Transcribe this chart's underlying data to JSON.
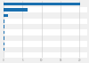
{
  "values": [
    20175000,
    6250000,
    1100000,
    300000,
    250000,
    200000,
    175000,
    150000,
    125000,
    100000
  ],
  "bar_color": "#1a6faf",
  "background_color": "#f0f0f0",
  "row_colors": [
    "#f0f0f0",
    "#ffffff"
  ],
  "grid_color": "#cccccc",
  "xlim": [
    0,
    22000000
  ],
  "bar_height": 0.55,
  "figsize": [
    1.0,
    0.71
  ],
  "dpi": 100,
  "xtick_labels": [
    "0",
    "5",
    "10",
    "15",
    "20"
  ],
  "xtick_values": [
    0,
    5000000,
    10000000,
    15000000,
    20000000
  ]
}
